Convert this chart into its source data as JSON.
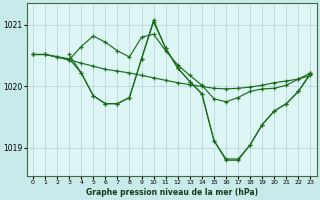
{
  "bg_color": "#c8eaea",
  "plot_bg_color": "#ddf5f5",
  "grid_color": "#b8d8d8",
  "line_color": "#1a6e1a",
  "xlabel": "Graphe pression niveau de la mer (hPa)",
  "ylim": [
    1018.55,
    1021.35
  ],
  "xlim": [
    -0.5,
    23.5
  ],
  "yticks": [
    1019,
    1020,
    1021
  ],
  "xticks": [
    0,
    1,
    2,
    3,
    4,
    5,
    6,
    7,
    8,
    9,
    10,
    11,
    12,
    13,
    14,
    15,
    16,
    17,
    18,
    19,
    20,
    21,
    22,
    23
  ],
  "series": [
    {
      "x": [
        0,
        1,
        2,
        3,
        4,
        5,
        6,
        7,
        8,
        9,
        10,
        11,
        12,
        13,
        14,
        15,
        16,
        17,
        18,
        19,
        20,
        21,
        22,
        23
      ],
      "y": [
        1020.52,
        1020.52,
        1020.48,
        1020.43,
        1020.38,
        1020.33,
        1020.28,
        1020.25,
        1020.22,
        1020.18,
        1020.14,
        1020.1,
        1020.06,
        1020.03,
        1020.0,
        1019.97,
        1019.96,
        1019.97,
        1019.99,
        1020.02,
        1020.06,
        1020.09,
        1020.12,
        1020.18
      ]
    },
    {
      "x": [
        0,
        1,
        2,
        3,
        4,
        5,
        6,
        7,
        8,
        9,
        10,
        11,
        12,
        13,
        14,
        15,
        16,
        17,
        18,
        19,
        20,
        21,
        22,
        23
      ],
      "y": [
        1020.52,
        1020.52,
        1020.48,
        1020.43,
        1020.65,
        1020.82,
        1020.72,
        1020.58,
        1020.48,
        1020.8,
        1020.85,
        1020.58,
        1020.35,
        1020.18,
        1020.02,
        1019.8,
        1019.75,
        1019.82,
        1019.92,
        1019.96,
        1019.97,
        1020.02,
        1020.12,
        1020.22
      ]
    },
    {
      "x": [
        0,
        1,
        3,
        4,
        5,
        6,
        7,
        8,
        9,
        10,
        11,
        12,
        13,
        14,
        15,
        16,
        17,
        18,
        19,
        20,
        21,
        22,
        23
      ],
      "y": [
        1020.52,
        1020.52,
        1020.45,
        1020.22,
        1019.85,
        1019.72,
        1019.72,
        1019.82,
        1020.45,
        1021.05,
        1020.62,
        1020.3,
        1020.08,
        1019.88,
        1019.12,
        1018.8,
        1018.8,
        1019.05,
        1019.38,
        1019.6,
        1019.72,
        1019.92,
        1020.2
      ]
    },
    {
      "x": [
        3,
        4,
        5,
        6,
        7,
        8,
        9,
        10,
        11,
        12,
        13,
        14,
        15,
        16,
        17,
        18,
        19,
        20,
        21,
        22,
        23
      ],
      "y": [
        1020.52,
        1020.22,
        1019.85,
        1019.72,
        1019.72,
        1019.82,
        1020.45,
        1021.08,
        1020.62,
        1020.3,
        1020.08,
        1019.88,
        1019.12,
        1018.82,
        1018.82,
        1019.05,
        1019.38,
        1019.6,
        1019.72,
        1019.92,
        1020.22
      ]
    }
  ]
}
